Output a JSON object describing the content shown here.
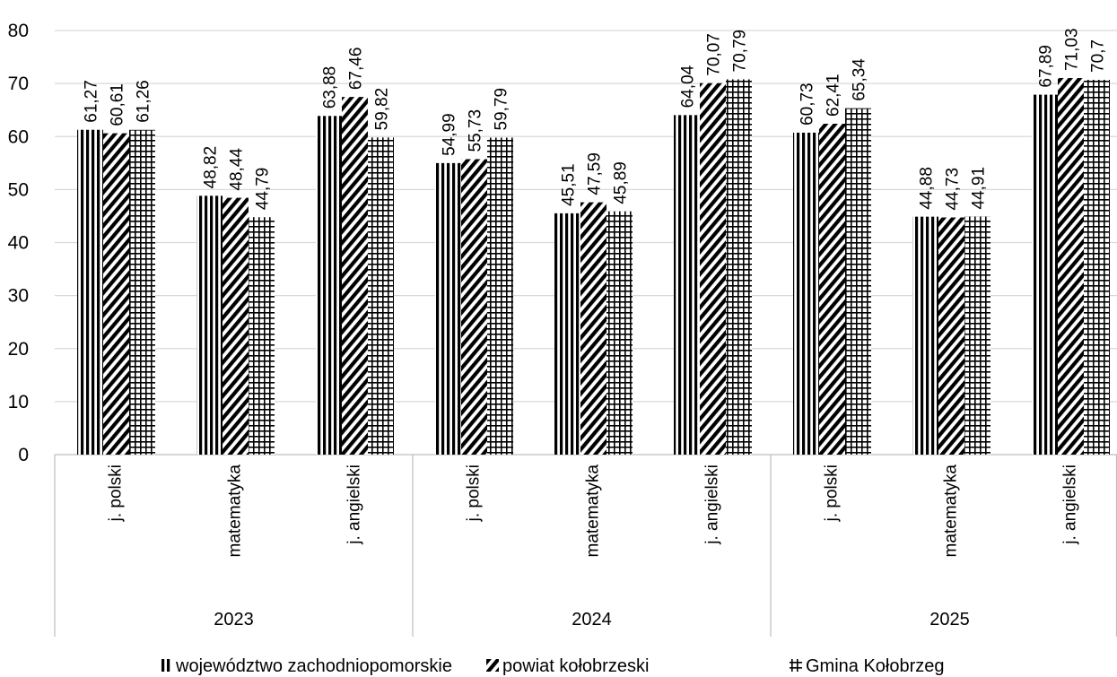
{
  "chart_data": {
    "type": "bar",
    "title": "",
    "xlabel": "",
    "ylabel": "",
    "ylim": [
      0,
      80
    ],
    "yticks": [
      "0",
      "10",
      "20",
      "30",
      "40",
      "50",
      "60",
      "70",
      "80"
    ],
    "grid": true,
    "legend_position": "bottom",
    "groups": [
      {
        "label": "2023",
        "categories": [
          "j. polski",
          "matematyka",
          "j. angielski"
        ]
      },
      {
        "label": "2024",
        "categories": [
          "j. polski",
          "matematyka",
          "j. angielski"
        ]
      },
      {
        "label": "2025",
        "categories": [
          "j. polski",
          "matematyka",
          "j. angielski"
        ]
      }
    ],
    "series": [
      {
        "name": "województwo zachodniopomorskie",
        "pattern": "vertical-stripes",
        "values": [
          61.27,
          48.82,
          63.88,
          54.99,
          45.51,
          64.04,
          60.73,
          44.88,
          67.89
        ],
        "labels": [
          "61,27",
          "48,82",
          "63,88",
          "54,99",
          "45,51",
          "64,04",
          "60,73",
          "44,88",
          "67,89"
        ]
      },
      {
        "name": "powiat kołobrzeski",
        "pattern": "diagonal-stripes",
        "values": [
          60.61,
          48.44,
          67.46,
          55.73,
          47.59,
          70.07,
          62.41,
          44.73,
          71.03
        ],
        "labels": [
          "60,61",
          "48,44",
          "67,46",
          "55,73",
          "47,59",
          "70,07",
          "62,41",
          "44,73",
          "71,03"
        ]
      },
      {
        "name": "Gmina Kołobrzeg",
        "pattern": "grid",
        "values": [
          61.26,
          44.79,
          59.82,
          59.79,
          45.89,
          70.79,
          65.34,
          44.91,
          70.7
        ],
        "labels": [
          "61,26",
          "44,79",
          "59,82",
          "59,79",
          "45,89",
          "70,79",
          "65,34",
          "44,91",
          "70,7"
        ]
      }
    ]
  }
}
